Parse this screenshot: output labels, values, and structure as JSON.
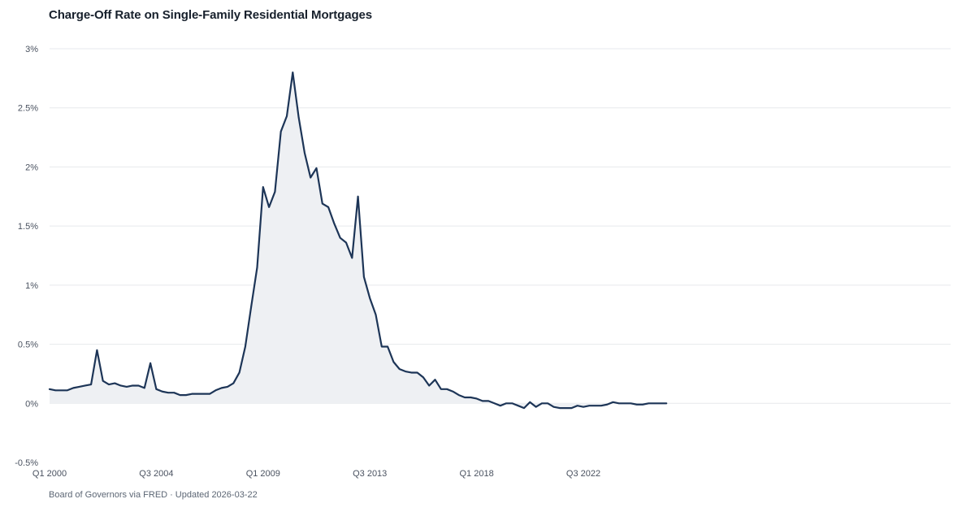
{
  "title": "Charge-Off Rate on Single-Family Residential Mortgages",
  "source": {
    "text": "Board of Governors via FRED",
    "updated": "Updated 2026-03-22"
  },
  "colors": {
    "line": "#1d3557",
    "area": "#eef0f3",
    "grid": "#e7e9ec",
    "tick_text": "#4a5260"
  },
  "chart_data": {
    "type": "area",
    "title": "Charge-Off Rate on Single-Family Residential Mortgages",
    "xlabel": "",
    "ylabel": "",
    "y_unit": "%",
    "ylim": [
      -0.5,
      3
    ],
    "y_ticks": [
      -0.5,
      0,
      0.5,
      1,
      1.5,
      2,
      2.5,
      3
    ],
    "y_tick_labels": [
      "-0.5%",
      "0%",
      "0.5%",
      "1%",
      "1.5%",
      "2%",
      "2.5%",
      "3%"
    ],
    "x_tick_labels": [
      "Q1 2000",
      "Q3 2004",
      "Q1 2009",
      "Q3 2013",
      "Q1 2018",
      "Q3 2022"
    ],
    "x_start": "Q1 2000",
    "x_end": "Q4 2025",
    "grid": true,
    "legend": "none",
    "series": [
      {
        "values": [
          0.12,
          0.11,
          0.11,
          0.11,
          0.13,
          0.14,
          0.15,
          0.16,
          0.45,
          0.19,
          0.16,
          0.17,
          0.15,
          0.14,
          0.15,
          0.15,
          0.13,
          0.34,
          0.12,
          0.1,
          0.09,
          0.09,
          0.07,
          0.07,
          0.08,
          0.08,
          0.08,
          0.08,
          0.11,
          0.13,
          0.14,
          0.17,
          0.26,
          0.48,
          0.82,
          1.15,
          1.83,
          1.66,
          1.79,
          2.3,
          2.43,
          2.8,
          2.42,
          2.12,
          1.91,
          1.99,
          1.69,
          1.66,
          1.52,
          1.4,
          1.36,
          1.23,
          1.75,
          1.07,
          0.89,
          0.75,
          0.48,
          0.48,
          0.35,
          0.29,
          0.27,
          0.26,
          0.26,
          0.22,
          0.15,
          0.2,
          0.12,
          0.12,
          0.1,
          0.07,
          0.05,
          0.05,
          0.04,
          0.02,
          0.02,
          0.0,
          -0.02,
          0.0,
          0.0,
          -0.02,
          -0.04,
          0.01,
          -0.03,
          0.0,
          0.0,
          -0.03,
          -0.04,
          -0.04,
          -0.04,
          -0.02,
          -0.03,
          -0.02,
          -0.02,
          -0.02,
          -0.01,
          0.01,
          0.0,
          0.0,
          0.0,
          -0.01,
          -0.01,
          0.0,
          0.0,
          0.0,
          0.0
        ]
      }
    ]
  }
}
